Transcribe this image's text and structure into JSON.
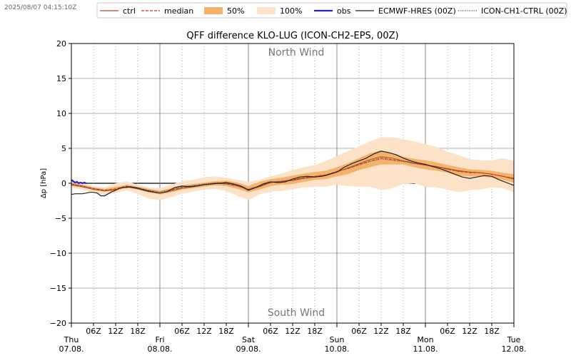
{
  "timestamp": "2025/08/07 04:15:10Z",
  "chart_data": {
    "type": "line",
    "title": "QFF difference KLO-LUG (ICON-CH2-EPS, 00Z)",
    "ylabel": "Δp [hPa]",
    "xlabel": "",
    "ylim": [
      -20,
      20
    ],
    "xlim_hours": [
      0,
      120
    ],
    "y_ticks": [
      20,
      15,
      10,
      5,
      0,
      -5,
      -10,
      -15,
      -20
    ],
    "y_tick_labels": [
      "20",
      "15",
      "10",
      "5",
      "0",
      "−5",
      "−10",
      "−15",
      "−20"
    ],
    "hour_ticks": [
      {
        "h": 6,
        "label": "06Z"
      },
      {
        "h": 12,
        "label": "12Z"
      },
      {
        "h": 18,
        "label": "18Z"
      },
      {
        "h": 30,
        "label": "06Z"
      },
      {
        "h": 36,
        "label": "12Z"
      },
      {
        "h": 42,
        "label": "18Z"
      },
      {
        "h": 54,
        "label": "06Z"
      },
      {
        "h": 60,
        "label": "12Z"
      },
      {
        "h": 66,
        "label": "18Z"
      },
      {
        "h": 78,
        "label": "06Z"
      },
      {
        "h": 84,
        "label": "12Z"
      },
      {
        "h": 90,
        "label": "18Z"
      },
      {
        "h": 102,
        "label": "06Z"
      },
      {
        "h": 108,
        "label": "12Z"
      },
      {
        "h": 114,
        "label": "18Z"
      }
    ],
    "day_ticks": [
      {
        "h": 0,
        "day": "Thu",
        "date": "07.08."
      },
      {
        "h": 24,
        "day": "Fri",
        "date": "08.08."
      },
      {
        "h": 48,
        "day": "Sat",
        "date": "09.08."
      },
      {
        "h": 72,
        "day": "Sun",
        "date": "10.08."
      },
      {
        "h": 96,
        "day": "Mon",
        "date": "11.08."
      },
      {
        "h": 120,
        "day": "Tue",
        "date": "12.08."
      }
    ],
    "annotations": {
      "top": "North Wind",
      "bottom": "South Wind"
    },
    "legend": [
      {
        "label": "ctrl",
        "style": "ctrl"
      },
      {
        "label": "median",
        "style": "median"
      },
      {
        "label": "50%",
        "style": "band50"
      },
      {
        "label": "100%",
        "style": "band100"
      },
      {
        "label": "obs",
        "style": "obs"
      },
      {
        "label": "ECMWF-HRES (00Z)",
        "style": "hres"
      },
      {
        "label": "ICON-CH1-CTRL (00Z)",
        "style": "ch1"
      }
    ],
    "colors": {
      "ctrl": "#a0522d",
      "median": "#c0392b",
      "band50": "#f5b26b",
      "band100": "#fce3c8",
      "obs": "#1f1fd0",
      "hres": "#222222",
      "ch1": "#444444"
    },
    "series": {
      "band100": {
        "x": [
          0,
          3,
          6,
          9,
          12,
          15,
          18,
          21,
          24,
          27,
          30,
          33,
          36,
          39,
          42,
          45,
          48,
          51,
          54,
          57,
          60,
          63,
          66,
          69,
          72,
          75,
          78,
          81,
          84,
          87,
          90,
          93,
          96,
          99,
          102,
          105,
          108,
          111,
          114,
          117,
          120
        ],
        "low": [
          -0.6,
          -0.9,
          -1.4,
          -1.7,
          -1.4,
          -1.0,
          -1.5,
          -2.2,
          -2.4,
          -2.0,
          -1.5,
          -1.2,
          -0.9,
          -0.8,
          -1.1,
          -1.8,
          -2.4,
          -1.6,
          -1.2,
          -1.1,
          -0.9,
          -0.6,
          -0.5,
          -0.5,
          -0.2,
          -0.4,
          -0.5,
          -0.5,
          -1.0,
          -0.7,
          -0.1,
          0.0,
          -0.5,
          -0.6,
          -0.9,
          -1.3,
          -1.0,
          -0.9,
          -0.6,
          -0.7,
          -1.3
        ],
        "high": [
          0.3,
          0.0,
          -0.4,
          -0.6,
          0.0,
          0.3,
          -0.2,
          -0.6,
          -0.7,
          -0.2,
          0.3,
          0.5,
          0.9,
          1.0,
          0.8,
          0.5,
          0.2,
          0.5,
          1.0,
          1.4,
          1.9,
          2.3,
          2.6,
          3.2,
          3.9,
          4.6,
          5.3,
          6.0,
          6.6,
          6.6,
          6.3,
          6.0,
          5.6,
          5.2,
          4.5,
          4.0,
          3.5,
          3.3,
          3.3,
          3.6,
          3.2
        ]
      },
      "band50": {
        "x": [
          0,
          3,
          6,
          9,
          12,
          15,
          18,
          21,
          24,
          27,
          30,
          33,
          36,
          39,
          42,
          45,
          48,
          51,
          54,
          57,
          60,
          63,
          66,
          69,
          72,
          75,
          78,
          81,
          84,
          87,
          90,
          93,
          96,
          99,
          102,
          105,
          108,
          111,
          114,
          117,
          120
        ],
        "low": [
          -0.4,
          -0.6,
          -0.9,
          -1.2,
          -1.1,
          -0.6,
          -0.9,
          -1.3,
          -1.6,
          -1.3,
          -0.9,
          -0.7,
          -0.5,
          -0.3,
          -0.4,
          -0.8,
          -1.3,
          -0.9,
          -0.4,
          -0.2,
          -0.1,
          0.2,
          0.5,
          0.6,
          1.0,
          1.3,
          1.9,
          2.3,
          2.7,
          2.7,
          2.7,
          2.3,
          2.0,
          1.8,
          1.5,
          1.1,
          1.0,
          1.0,
          0.8,
          0.5,
          0.1
        ],
        "high": [
          0.1,
          -0.2,
          -0.6,
          -0.8,
          -0.5,
          -0.2,
          -0.5,
          -0.8,
          -1.1,
          -0.7,
          -0.3,
          -0.1,
          0.1,
          0.3,
          0.4,
          0.1,
          -0.4,
          0.2,
          0.6,
          0.8,
          1.1,
          1.4,
          1.6,
          1.8,
          2.3,
          2.9,
          3.6,
          4.3,
          4.7,
          4.3,
          3.8,
          3.5,
          3.3,
          3.0,
          2.6,
          2.3,
          2.0,
          1.9,
          1.8,
          1.5,
          1.3
        ]
      },
      "median": {
        "x": [
          0,
          3,
          6,
          9,
          12,
          15,
          18,
          21,
          24,
          27,
          30,
          33,
          36,
          39,
          42,
          45,
          48,
          51,
          54,
          57,
          60,
          63,
          66,
          69,
          72,
          75,
          78,
          81,
          84,
          87,
          90,
          93,
          96,
          99,
          102,
          105,
          108,
          111,
          114,
          117,
          120
        ],
        "y": [
          -0.1,
          -0.4,
          -0.8,
          -1.0,
          -0.8,
          -0.4,
          -0.7,
          -1.1,
          -1.4,
          -1.0,
          -0.6,
          -0.4,
          -0.2,
          0.0,
          0.0,
          -0.3,
          -0.9,
          -0.4,
          0.1,
          0.3,
          0.5,
          0.8,
          1.0,
          1.2,
          1.7,
          2.1,
          2.7,
          3.2,
          3.6,
          3.4,
          3.2,
          2.9,
          2.6,
          2.4,
          2.0,
          1.7,
          1.5,
          1.5,
          1.3,
          1.0,
          0.7
        ]
      },
      "ctrl": {
        "x": [
          0,
          3,
          6,
          9,
          12,
          15,
          18,
          21,
          24,
          27,
          30,
          33,
          36,
          39,
          42,
          45,
          48,
          51,
          54,
          57,
          60,
          63,
          66,
          69,
          72,
          75,
          78,
          81,
          84,
          87,
          90,
          93,
          96,
          99,
          102,
          105,
          108,
          111,
          114,
          117,
          120
        ],
        "y": [
          -0.2,
          -0.5,
          -0.9,
          -1.1,
          -0.9,
          -0.5,
          -0.8,
          -1.2,
          -1.4,
          -1.1,
          -0.7,
          -0.5,
          -0.2,
          0.0,
          -0.1,
          -0.4,
          -0.9,
          -0.5,
          0.1,
          0.3,
          0.4,
          0.7,
          0.9,
          1.1,
          1.6,
          2.2,
          2.8,
          3.4,
          3.8,
          3.6,
          3.2,
          2.9,
          2.6,
          2.4,
          2.1,
          1.8,
          1.6,
          1.5,
          1.3,
          1.0,
          0.6
        ]
      },
      "hres": {
        "x": [
          0,
          1,
          3,
          5,
          6,
          7,
          8,
          9,
          10,
          11,
          12,
          13,
          14,
          15,
          16,
          18,
          20,
          22,
          24,
          26,
          28,
          30,
          32,
          34,
          36,
          38,
          40,
          42,
          44,
          46,
          48,
          50,
          52,
          54,
          56,
          58,
          60,
          62,
          64,
          66,
          68,
          70,
          72,
          74,
          76,
          78,
          80,
          82,
          84,
          86,
          88,
          90,
          92,
          94,
          96,
          98,
          100,
          102,
          104,
          106,
          108,
          110,
          112,
          114,
          116,
          118,
          120
        ],
        "y": [
          -1.6,
          -1.5,
          -1.5,
          -1.3,
          -1.3,
          -1.4,
          -1.8,
          -1.8,
          -1.5,
          -1.2,
          -1.0,
          -0.7,
          -0.6,
          -0.6,
          -0.5,
          -0.7,
          -1.0,
          -1.2,
          -1.4,
          -1.2,
          -0.6,
          -0.4,
          -0.5,
          -0.4,
          -0.2,
          -0.1,
          0.0,
          0.1,
          -0.1,
          -0.4,
          -1.0,
          -0.6,
          -0.1,
          0.2,
          0.1,
          0.2,
          0.6,
          0.9,
          1.0,
          0.9,
          1.0,
          1.3,
          1.6,
          2.3,
          2.8,
          3.2,
          3.6,
          4.2,
          4.6,
          4.4,
          4.1,
          3.6,
          3.2,
          2.9,
          2.7,
          2.4,
          2.1,
          1.7,
          1.3,
          0.9,
          0.7,
          0.9,
          1.1,
          1.0,
          0.5,
          0.1,
          -0.3
        ]
      },
      "ch1": {
        "x": [
          0,
          3,
          6,
          9,
          12,
          15,
          18,
          21,
          24,
          27,
          30,
          33,
          36,
          39,
          42,
          45,
          48,
          51,
          54,
          57,
          60,
          63,
          66,
          69,
          72,
          75,
          78,
          81,
          84,
          87,
          90,
          93,
          96,
          99,
          102,
          105,
          108,
          111,
          114,
          117,
          120
        ],
        "y": [
          -0.1,
          -0.4,
          -0.7,
          -1.0,
          -0.9,
          -0.4,
          -0.6,
          -1.0,
          -1.2,
          -0.9,
          -0.5,
          -0.3,
          -0.1,
          0.1,
          0.0,
          -0.2,
          -0.8,
          -0.4,
          0.2,
          0.3,
          0.5,
          0.8,
          1.0,
          1.2,
          1.7,
          2.1,
          2.6,
          3.1,
          3.5,
          3.3,
          3.1,
          2.8,
          2.6,
          2.4,
          2.0,
          1.7,
          1.6,
          1.5,
          1.3,
          1.0,
          0.7
        ]
      },
      "obs": {
        "x": [
          0,
          0.5,
          1,
          1.5,
          2,
          2.5,
          3,
          3.5,
          4
        ],
        "y": [
          0.5,
          0.3,
          0.1,
          0.2,
          0.0,
          0.1,
          0.0,
          0.1,
          0.0
        ]
      }
    }
  }
}
